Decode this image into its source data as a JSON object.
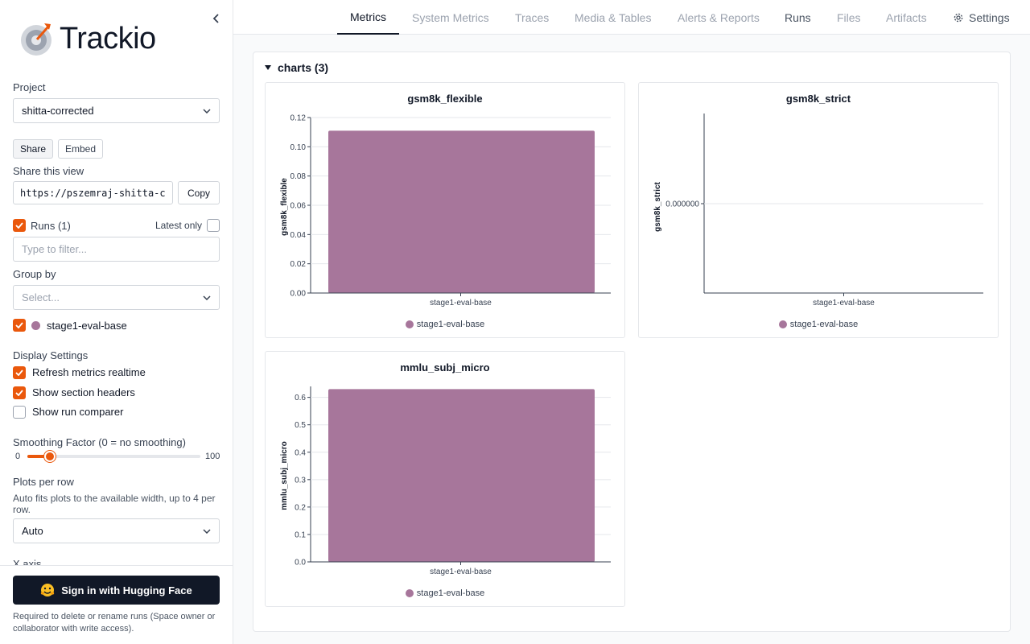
{
  "app": {
    "logo_text": "Trackio",
    "accent_color": "#ea580c"
  },
  "sidebar": {
    "project_label": "Project",
    "project_value": "shitta-corrected",
    "share_tab": "Share",
    "embed_tab": "Embed",
    "share_view_label": "Share this view",
    "share_url": "https://pszemraj-shitta-c",
    "copy_label": "Copy",
    "runs_label": "Runs (1)",
    "latest_only_label": "Latest only",
    "filter_placeholder": "Type to filter...",
    "group_by_label": "Group by",
    "group_by_placeholder": "Select...",
    "runs": [
      {
        "name": "stage1-eval-base",
        "color": "#a7769b",
        "checked": true
      }
    ],
    "display_settings_label": "Display Settings",
    "display_settings": [
      {
        "label": "Refresh metrics realtime",
        "checked": true
      },
      {
        "label": "Show section headers",
        "checked": true
      },
      {
        "label": "Show run comparer",
        "checked": false
      }
    ],
    "smoothing_label": "Smoothing Factor (0 = no smoothing)",
    "smoothing_min": "0",
    "smoothing_max": "100",
    "smoothing_value": 10,
    "plots_per_row_label": "Plots per row",
    "plots_per_row_help": "Auto fits plots to the available width, up to 4 per row.",
    "plots_per_row_value": "Auto",
    "x_axis_label": "X axis",
    "sign_in_label": "Sign in with Hugging Face",
    "sign_in_note": "Required to delete or rename runs (Space owner or collaborator with write access)."
  },
  "nav": {
    "tabs": [
      "Metrics",
      "System Metrics",
      "Traces",
      "Media & Tables",
      "Alerts & Reports",
      "Runs",
      "Files",
      "Artifacts"
    ],
    "active_tab": "Metrics",
    "settings_label": "Settings"
  },
  "main": {
    "section_title": "charts (3)"
  },
  "chart_data": [
    {
      "type": "bar",
      "title": "gsm8k_flexible",
      "ylabel": "gsm8k_flexible",
      "categories": [
        "stage1-eval-base"
      ],
      "series": [
        {
          "name": "stage1-eval-base",
          "values": [
            0.111
          ],
          "color": "#a7769b"
        }
      ],
      "ylim": [
        0,
        0.12
      ],
      "yticks": [
        "0.00",
        "0.02",
        "0.04",
        "0.06",
        "0.08",
        "0.10",
        "0.12"
      ],
      "legend": "bottom"
    },
    {
      "type": "bar",
      "title": "gsm8k_strict",
      "ylabel": "gsm8k_strict",
      "categories": [
        "stage1-eval-base"
      ],
      "series": [
        {
          "name": "stage1-eval-base",
          "values": [
            0
          ],
          "color": "#a7769b"
        }
      ],
      "yticks": [
        "0.000000"
      ],
      "legend": "bottom"
    },
    {
      "type": "bar",
      "title": "mmlu_subj_micro",
      "ylabel": "mmlu_subj_micro",
      "categories": [
        "stage1-eval-base"
      ],
      "series": [
        {
          "name": "stage1-eval-base",
          "values": [
            0.63
          ],
          "color": "#a7769b"
        }
      ],
      "ylim": [
        0,
        0.64
      ],
      "yticks": [
        "0.0",
        "0.1",
        "0.2",
        "0.3",
        "0.4",
        "0.5",
        "0.6"
      ],
      "legend": "bottom"
    }
  ]
}
